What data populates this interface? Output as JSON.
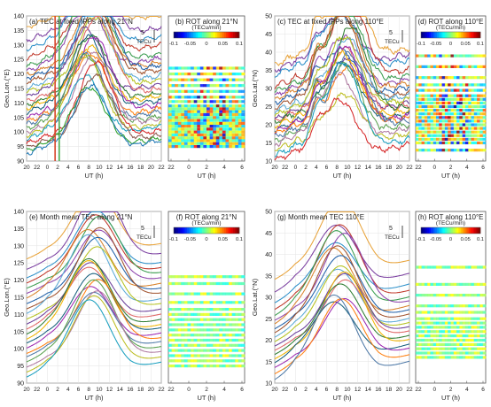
{
  "figure": {
    "xlabel": "UT (h)",
    "time_ticks": [
      "20",
      "22",
      "0",
      "2",
      "4",
      "6",
      "8",
      "10",
      "12",
      "14",
      "16",
      "18",
      "20",
      "22"
    ],
    "rot_ticks": [
      "22",
      "0",
      "2",
      "4",
      "6"
    ],
    "colorbar_ticks": [
      "-0.1",
      "-0.05",
      "0",
      "0.05",
      "0.1"
    ],
    "colorbar_unit": "(TECu/min)",
    "scale_label": "5",
    "scale_unit": "TECu"
  },
  "chart_data": [
    {
      "id": "a",
      "type": "line",
      "title": "(a) TEC at fixed IPPs along 21°N",
      "ylabel": "Geo.Lon.(°E)",
      "ylim": [
        90,
        140
      ],
      "yticks": [
        "90",
        "95",
        "100",
        "105",
        "110",
        "115",
        "120",
        "125",
        "130",
        "135",
        "140"
      ],
      "xlim": [
        20,
        46
      ],
      "baselines": [
        138.5,
        134,
        131,
        128,
        125,
        123.5,
        122,
        121,
        119.5,
        117.5,
        116,
        114.5,
        113,
        111.5,
        110.5,
        109,
        107.5,
        106,
        105,
        103.5,
        102.5,
        101,
        100,
        98.5,
        97,
        96,
        95
      ],
      "bump_shape": "day",
      "bump_amplitude": [
        14,
        27
      ],
      "peak_time_ut": 8.5,
      "vertical_markers": [
        {
          "ut": 1.5,
          "color": "#d9452a"
        },
        {
          "ut": 2.3,
          "color": "#4caf50"
        }
      ]
    },
    {
      "id": "b",
      "type": "heatmap",
      "title": "(b) ROT along 21°N",
      "colorbar_label": "(TECu/min)",
      "clim": [
        -0.1,
        0.1
      ],
      "ylim": [
        90,
        140
      ],
      "xlim": [
        22,
        30
      ],
      "rows": [
        122,
        120,
        118,
        116,
        114,
        112,
        110.5,
        109,
        108,
        107,
        106,
        105,
        104,
        103,
        102,
        101,
        100,
        99,
        98,
        97,
        96,
        95
      ]
    },
    {
      "id": "c",
      "type": "line",
      "title": "(c) TEC at fixed IPPs along 110°E",
      "ylabel": "Geo.Lat.(°N)",
      "ylim": [
        10,
        50
      ],
      "yticks": [
        "10",
        "15",
        "20",
        "25",
        "30",
        "35",
        "40",
        "45",
        "50"
      ],
      "xlim": [
        20,
        46
      ],
      "baselines": [
        39,
        37.5,
        36,
        33,
        31.5,
        30.5,
        29.5,
        28.5,
        27,
        26,
        25,
        24,
        23.5,
        23,
        22,
        21,
        20.5,
        20,
        19,
        18,
        17,
        15.5,
        14,
        12.5
      ],
      "bump_shape": "day_with_morning_hump",
      "bump_amplitude": [
        5,
        25
      ],
      "peak_time_ut": 9.5
    },
    {
      "id": "d",
      "type": "heatmap",
      "title": "(d) ROT along 110°E",
      "colorbar_label": "(TECu/min)",
      "clim": [
        -0.1,
        0.1
      ],
      "ylim": [
        10,
        50
      ],
      "xlim": [
        22,
        30
      ],
      "rows": [
        39,
        36,
        33,
        31,
        29.5,
        28,
        27,
        26,
        25,
        24,
        23,
        22,
        21,
        20,
        19,
        18,
        17,
        16,
        15,
        13
      ]
    },
    {
      "id": "e",
      "type": "line",
      "title": "(e) Month mean TEC along 21°N",
      "ylabel": "Geo.Lon.(°E)",
      "ylim": [
        90,
        140
      ],
      "yticks": [
        "90",
        "95",
        "100",
        "105",
        "110",
        "115",
        "120",
        "125",
        "130",
        "135",
        "140"
      ],
      "xlim": [
        20,
        46
      ],
      "baselines": [
        128.5,
        125.5,
        123,
        121.5,
        120,
        118.5,
        117,
        115.5,
        114,
        112.5,
        111,
        109.5,
        108,
        106.5,
        105,
        104,
        102.5,
        101,
        100,
        98.5,
        97,
        95.5,
        94
      ],
      "bump_shape": "smooth_day",
      "bump_amplitude": [
        12,
        22
      ],
      "peak_time_ut": 9
    },
    {
      "id": "f",
      "type": "heatmap",
      "title": "(f) ROT along 21°N",
      "colorbar_label": "(TECu/min)",
      "clim": [
        -0.1,
        0.1
      ],
      "ylim": [
        90,
        140
      ],
      "xlim": [
        22,
        30
      ],
      "rows": [
        121,
        119,
        116,
        113.5,
        111.5,
        110,
        108.5,
        107,
        105.5,
        104,
        102.5,
        101,
        99.5,
        98,
        96.5,
        95
      ]
    },
    {
      "id": "g",
      "type": "line",
      "title": "(g) Month mean TEC 110°E",
      "ylabel": "Geo.Lat.(°N)",
      "ylim": [
        10,
        50
      ],
      "yticks": [
        "10",
        "15",
        "20",
        "25",
        "30",
        "35",
        "40",
        "45",
        "50"
      ],
      "xlim": [
        20,
        46
      ],
      "baselines": [
        36.5,
        33.5,
        31,
        29.5,
        28,
        27,
        26,
        25,
        24,
        23,
        22,
        21,
        20,
        19,
        18,
        17,
        16,
        14.5,
        13
      ],
      "bump_shape": "smooth_day",
      "bump_amplitude": [
        6,
        18
      ],
      "peak_time_ut": 8.5
    },
    {
      "id": "h",
      "type": "heatmap",
      "title": "(h) ROT along 110°E",
      "colorbar_label": "(TECu/min)",
      "clim": [
        -0.1,
        0.1
      ],
      "ylim": [
        10,
        50
      ],
      "xlim": [
        22,
        30
      ],
      "rows": [
        37,
        33,
        30.5,
        28,
        26.5,
        25,
        24,
        23,
        22,
        21,
        20,
        19,
        18,
        17,
        16
      ]
    }
  ]
}
